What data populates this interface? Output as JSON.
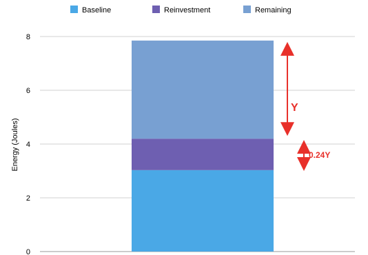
{
  "chart_data": {
    "type": "bar",
    "stacked": true,
    "categories": [
      ""
    ],
    "series": [
      {
        "name": "Baseline",
        "values": [
          3.03
        ],
        "color": "#4aa8e6"
      },
      {
        "name": "Reinvestment",
        "values": [
          1.17
        ],
        "color": "#6e5fb1"
      },
      {
        "name": "Remaining",
        "values": [
          3.65
        ],
        "color": "#78a0d2"
      }
    ],
    "ylabel": "Energy (Joules)",
    "xlabel": "",
    "ylim": [
      0,
      8
    ],
    "yticks": [
      0,
      2,
      4,
      6,
      8
    ],
    "grid": true,
    "legend_position": "top",
    "annotations": [
      {
        "text": "Y",
        "color": "#e8302a",
        "from": 4.2,
        "to": 7.85
      },
      {
        "text": "0.24Y",
        "color": "#e8302a",
        "from": 3.05,
        "to": 4.1
      }
    ]
  }
}
